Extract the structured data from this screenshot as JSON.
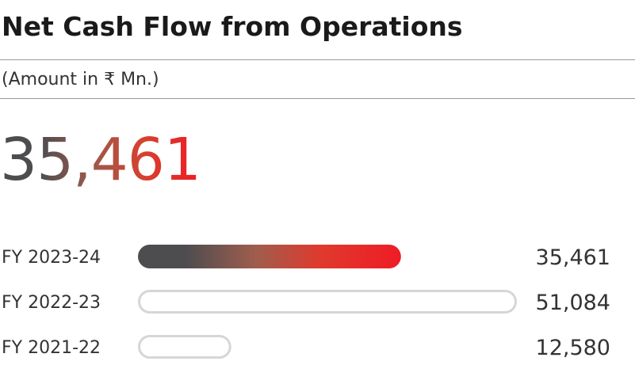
{
  "title": "Net Cash Flow from Operations",
  "subtitle": "(Amount in ₹ Mn.)",
  "headline_value": "35,461",
  "colors": {
    "bar_gradient_start": "#4d4d4f",
    "bar_gradient_end": "#ee1c25",
    "bar_outline": "#d6d6d6"
  },
  "chart_data": {
    "type": "bar",
    "orientation": "horizontal",
    "categories": [
      "FY 2023-24",
      "FY 2022-23",
      "FY 2021-22"
    ],
    "values": [
      35461,
      51084,
      12580
    ],
    "value_labels": [
      "35,461",
      "51,084",
      "12,580"
    ],
    "highlighted": "FY 2023-24",
    "xlim": [
      0,
      51084
    ],
    "grid": false
  }
}
